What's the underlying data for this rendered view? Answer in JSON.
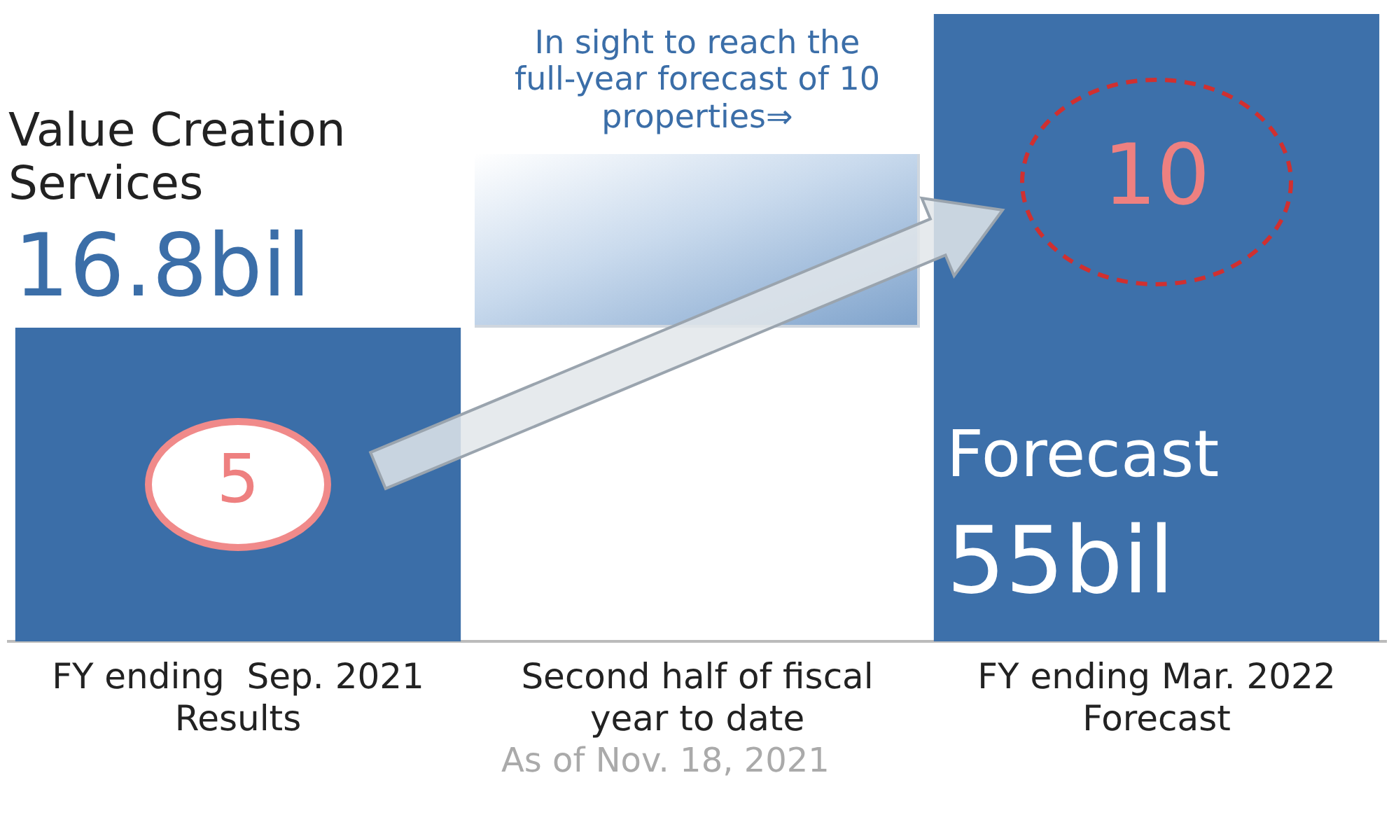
{
  "chart_data": {
    "type": "bar",
    "categories": [
      "FY ending  Sep. 2021\nResults",
      "Second half of fiscal\nyear to date",
      "FY ending Mar. 2022\nForecast"
    ],
    "values": [
      5,
      null,
      10
    ],
    "colors": [
      "#3b6ea8",
      "#c9daed",
      "#3d70aa"
    ],
    "value_labels": [
      "5",
      null,
      "10"
    ],
    "annotations": [
      "Value Creation\nServices",
      "16.8bil",
      "In sight to reach the\nfull-year forecast of 10\nproperties⇒",
      "Forecast",
      "55bil",
      "As of Nov. 18, 2021"
    ],
    "grid": false,
    "legend": false,
    "tick_labels": "x"
  }
}
